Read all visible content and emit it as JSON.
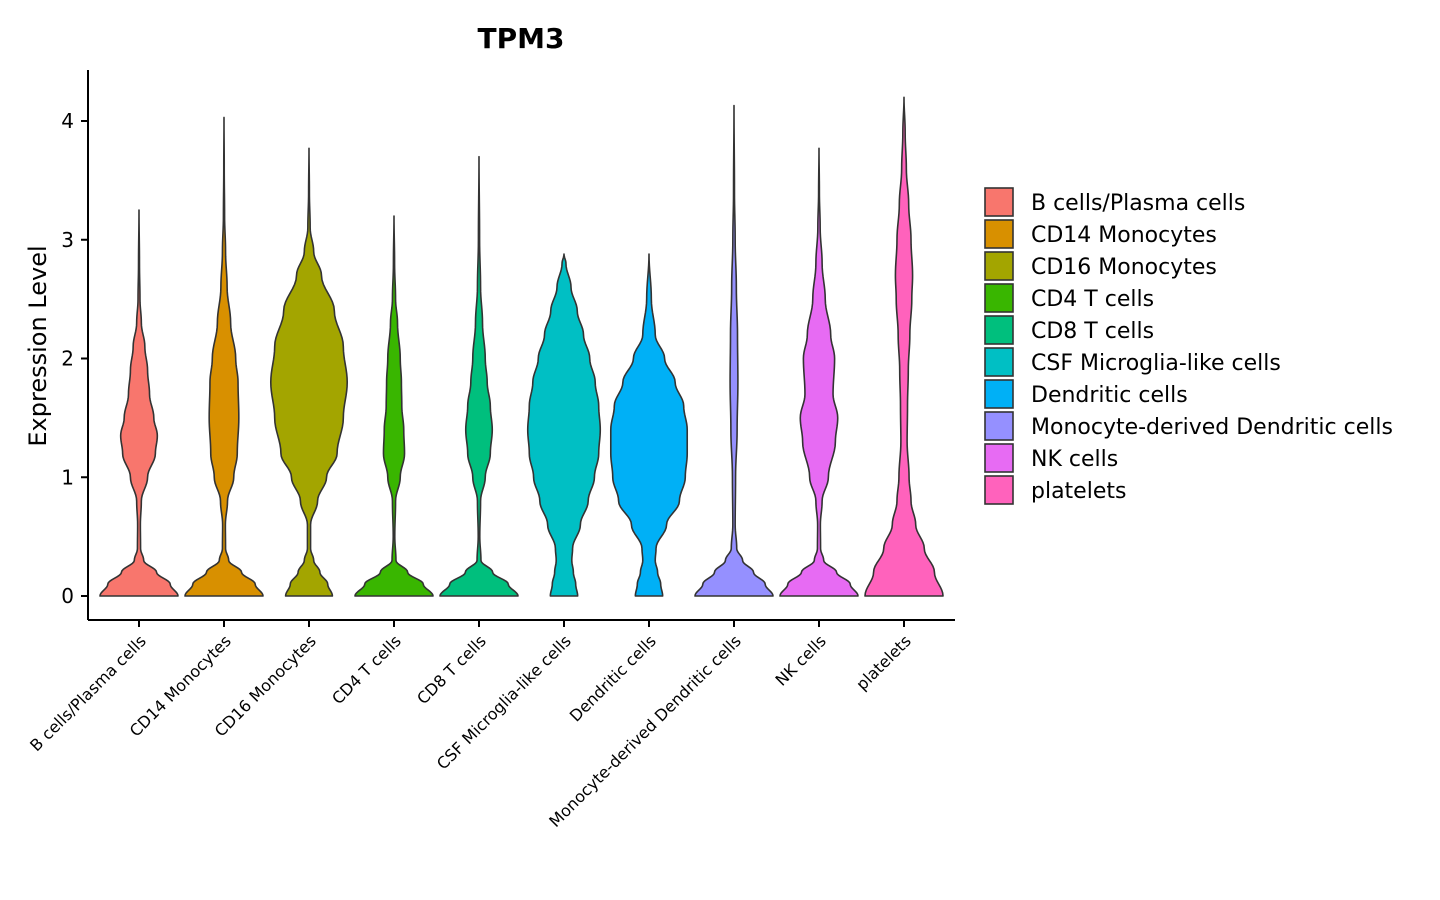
{
  "chart_data": {
    "type": "violin",
    "title": "TPM3",
    "xlabel": "",
    "ylabel": "Expression Level",
    "ylim": [
      -0.2,
      4.4
    ],
    "yticks": [
      0,
      1,
      2,
      3,
      4
    ],
    "legend_position": "right",
    "categories": [
      "B cells/Plasma cells",
      "CD14 Monocytes",
      "CD16 Monocytes",
      "CD4 T cells",
      "CD8 T cells",
      "CSF Microglia-like cells",
      "Dendritic cells",
      "Monocyte-derived Dendritic cells",
      "NK cells",
      "platelets"
    ],
    "colors": [
      "#F8766D",
      "#D89000",
      "#A3A500",
      "#39B600",
      "#00BF7D",
      "#00BFC4",
      "#00B0F6",
      "#9590FF",
      "#E76BF3",
      "#FF62BC"
    ],
    "series": [
      {
        "name": "B cells/Plasma cells",
        "max": 3.25,
        "density": [
          [
            0,
            1.0
          ],
          [
            0.1,
            0.8
          ],
          [
            0.2,
            0.45
          ],
          [
            0.3,
            0.12
          ],
          [
            0.4,
            0.04
          ],
          [
            0.6,
            0.035
          ],
          [
            0.8,
            0.06
          ],
          [
            1.0,
            0.22
          ],
          [
            1.2,
            0.42
          ],
          [
            1.35,
            0.47
          ],
          [
            1.5,
            0.38
          ],
          [
            1.7,
            0.27
          ],
          [
            1.9,
            0.22
          ],
          [
            2.1,
            0.15
          ],
          [
            2.3,
            0.06
          ],
          [
            2.5,
            0.025
          ],
          [
            2.8,
            0.012
          ],
          [
            3.25,
            0.0
          ]
        ]
      },
      {
        "name": "CD14 Monocytes",
        "max": 4.03,
        "density": [
          [
            0,
            1.0
          ],
          [
            0.1,
            0.8
          ],
          [
            0.2,
            0.45
          ],
          [
            0.3,
            0.12
          ],
          [
            0.4,
            0.04
          ],
          [
            0.6,
            0.035
          ],
          [
            0.8,
            0.09
          ],
          [
            1.0,
            0.25
          ],
          [
            1.2,
            0.34
          ],
          [
            1.5,
            0.38
          ],
          [
            1.8,
            0.36
          ],
          [
            2.0,
            0.3
          ],
          [
            2.3,
            0.17
          ],
          [
            2.6,
            0.08
          ],
          [
            2.9,
            0.04
          ],
          [
            3.2,
            0.015
          ],
          [
            3.6,
            0.006
          ],
          [
            4.03,
            0.0
          ]
        ]
      },
      {
        "name": "CD16 Monocytes",
        "max": 3.77,
        "density": [
          [
            0,
            0.6
          ],
          [
            0.1,
            0.48
          ],
          [
            0.2,
            0.28
          ],
          [
            0.3,
            0.12
          ],
          [
            0.4,
            0.04
          ],
          [
            0.6,
            0.04
          ],
          [
            0.8,
            0.22
          ],
          [
            1.0,
            0.45
          ],
          [
            1.2,
            0.72
          ],
          [
            1.5,
            0.88
          ],
          [
            1.8,
            0.98
          ],
          [
            2.1,
            0.88
          ],
          [
            2.4,
            0.65
          ],
          [
            2.7,
            0.32
          ],
          [
            2.9,
            0.12
          ],
          [
            3.1,
            0.03
          ],
          [
            3.4,
            0.01
          ],
          [
            3.77,
            0.0
          ]
        ]
      },
      {
        "name": "CD4 T cells",
        "max": 3.2,
        "density": [
          [
            0,
            1.0
          ],
          [
            0.1,
            0.75
          ],
          [
            0.2,
            0.35
          ],
          [
            0.3,
            0.05
          ],
          [
            0.5,
            0.02
          ],
          [
            0.8,
            0.04
          ],
          [
            1.0,
            0.16
          ],
          [
            1.2,
            0.27
          ],
          [
            1.4,
            0.25
          ],
          [
            1.6,
            0.2
          ],
          [
            1.8,
            0.19
          ],
          [
            2.0,
            0.16
          ],
          [
            2.3,
            0.09
          ],
          [
            2.5,
            0.04
          ],
          [
            2.8,
            0.015
          ],
          [
            3.2,
            0.0
          ]
        ]
      },
      {
        "name": "CD8 T cells",
        "max": 3.7,
        "density": [
          [
            0,
            1.0
          ],
          [
            0.1,
            0.75
          ],
          [
            0.2,
            0.35
          ],
          [
            0.3,
            0.05
          ],
          [
            0.5,
            0.02
          ],
          [
            0.8,
            0.04
          ],
          [
            1.0,
            0.16
          ],
          [
            1.2,
            0.29
          ],
          [
            1.4,
            0.34
          ],
          [
            1.6,
            0.29
          ],
          [
            1.8,
            0.21
          ],
          [
            2.0,
            0.16
          ],
          [
            2.3,
            0.09
          ],
          [
            2.6,
            0.04
          ],
          [
            3.0,
            0.015
          ],
          [
            3.7,
            0.0
          ]
        ]
      },
      {
        "name": "CSF Microglia-like cells",
        "max": 2.88,
        "density": [
          [
            0,
            0.35
          ],
          [
            0.1,
            0.3
          ],
          [
            0.2,
            0.24
          ],
          [
            0.3,
            0.2
          ],
          [
            0.4,
            0.22
          ],
          [
            0.6,
            0.42
          ],
          [
            0.8,
            0.62
          ],
          [
            1.0,
            0.78
          ],
          [
            1.2,
            0.89
          ],
          [
            1.4,
            0.93
          ],
          [
            1.6,
            0.89
          ],
          [
            1.8,
            0.8
          ],
          [
            2.0,
            0.66
          ],
          [
            2.2,
            0.5
          ],
          [
            2.4,
            0.34
          ],
          [
            2.6,
            0.18
          ],
          [
            2.8,
            0.05
          ],
          [
            2.88,
            0.0
          ]
        ]
      },
      {
        "name": "Dendritic cells",
        "max": 2.88,
        "density": [
          [
            0,
            0.35
          ],
          [
            0.1,
            0.3
          ],
          [
            0.2,
            0.22
          ],
          [
            0.3,
            0.16
          ],
          [
            0.4,
            0.18
          ],
          [
            0.6,
            0.45
          ],
          [
            0.8,
            0.78
          ],
          [
            1.0,
            0.93
          ],
          [
            1.2,
            0.98
          ],
          [
            1.4,
            0.98
          ],
          [
            1.6,
            0.89
          ],
          [
            1.8,
            0.67
          ],
          [
            2.0,
            0.4
          ],
          [
            2.2,
            0.16
          ],
          [
            2.5,
            0.06
          ],
          [
            2.88,
            0.0
          ]
        ]
      },
      {
        "name": "Monocyte-derived Dendritic cells",
        "max": 4.13,
        "density": [
          [
            0,
            1.0
          ],
          [
            0.1,
            0.8
          ],
          [
            0.2,
            0.5
          ],
          [
            0.3,
            0.22
          ],
          [
            0.4,
            0.07
          ],
          [
            0.6,
            0.03
          ],
          [
            1.0,
            0.04
          ],
          [
            1.4,
            0.08
          ],
          [
            1.8,
            0.1
          ],
          [
            2.2,
            0.09
          ],
          [
            2.6,
            0.06
          ],
          [
            3.0,
            0.03
          ],
          [
            3.4,
            0.012
          ],
          [
            4.13,
            0.0
          ]
        ]
      },
      {
        "name": "NK cells",
        "max": 3.77,
        "density": [
          [
            0,
            1.0
          ],
          [
            0.1,
            0.8
          ],
          [
            0.2,
            0.45
          ],
          [
            0.3,
            0.12
          ],
          [
            0.4,
            0.04
          ],
          [
            0.6,
            0.035
          ],
          [
            0.8,
            0.08
          ],
          [
            1.0,
            0.24
          ],
          [
            1.3,
            0.42
          ],
          [
            1.5,
            0.48
          ],
          [
            1.7,
            0.36
          ],
          [
            2.0,
            0.4
          ],
          [
            2.2,
            0.3
          ],
          [
            2.5,
            0.16
          ],
          [
            2.8,
            0.08
          ],
          [
            3.1,
            0.03
          ],
          [
            3.4,
            0.01
          ],
          [
            3.77,
            0.0
          ]
        ]
      },
      {
        "name": "platelets",
        "max": 4.2,
        "density": [
          [
            0,
            1.0
          ],
          [
            0.2,
            0.78
          ],
          [
            0.4,
            0.52
          ],
          [
            0.6,
            0.3
          ],
          [
            0.8,
            0.18
          ],
          [
            1.0,
            0.13
          ],
          [
            1.3,
            0.08
          ],
          [
            1.6,
            0.09
          ],
          [
            1.9,
            0.11
          ],
          [
            2.2,
            0.15
          ],
          [
            2.5,
            0.2
          ],
          [
            2.7,
            0.22
          ],
          [
            3.0,
            0.18
          ],
          [
            3.3,
            0.12
          ],
          [
            3.6,
            0.06
          ],
          [
            3.9,
            0.03
          ],
          [
            4.2,
            0.0
          ]
        ]
      }
    ]
  }
}
